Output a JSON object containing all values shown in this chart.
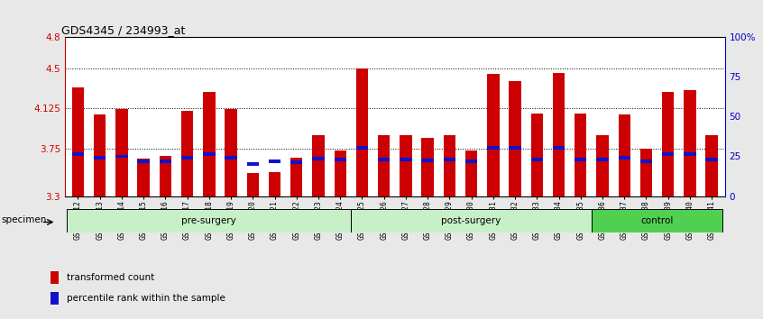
{
  "title": "GDS4345 / 234993_at",
  "samples": [
    "GSM842012",
    "GSM842013",
    "GSM842014",
    "GSM842015",
    "GSM842016",
    "GSM842017",
    "GSM842018",
    "GSM842019",
    "GSM842020",
    "GSM842021",
    "GSM842022",
    "GSM842023",
    "GSM842024",
    "GSM842025",
    "GSM842026",
    "GSM842027",
    "GSM842028",
    "GSM842029",
    "GSM842030",
    "GSM842031",
    "GSM842032",
    "GSM842033",
    "GSM842034",
    "GSM842035",
    "GSM842036",
    "GSM842037",
    "GSM842038",
    "GSM842039",
    "GSM842040",
    "GSM842041"
  ],
  "bar_values": [
    4.32,
    4.07,
    4.12,
    3.65,
    3.68,
    4.1,
    4.28,
    4.12,
    3.52,
    3.53,
    3.66,
    3.87,
    3.73,
    4.5,
    3.87,
    3.87,
    3.85,
    3.87,
    3.73,
    4.45,
    4.38,
    4.08,
    4.46,
    4.08,
    3.87,
    4.07,
    3.75,
    4.28,
    4.3,
    3.87
  ],
  "percentile_values": [
    3.695,
    3.665,
    3.675,
    3.625,
    3.63,
    3.665,
    3.695,
    3.665,
    3.6,
    3.625,
    3.62,
    3.655,
    3.645,
    3.755,
    3.645,
    3.645,
    3.64,
    3.645,
    3.63,
    3.755,
    3.755,
    3.645,
    3.755,
    3.645,
    3.645,
    3.665,
    3.63,
    3.695,
    3.695,
    3.645
  ],
  "groups": [
    {
      "label": "pre-surgery",
      "start": 0,
      "end": 13,
      "color": "#c8f0c8"
    },
    {
      "label": "post-surgery",
      "start": 13,
      "end": 24,
      "color": "#c8f0c8"
    },
    {
      "label": "control",
      "start": 24,
      "end": 30,
      "color": "#50d050"
    }
  ],
  "ymin": 3.3,
  "ymax": 4.8,
  "yticks_left": [
    3.3,
    3.75,
    4.125,
    4.5,
    4.8
  ],
  "ytick_labels_left": [
    "3.3",
    "3.75",
    "4.125",
    "4.5",
    "4.8"
  ],
  "right_yticks": [
    0,
    25,
    50,
    75,
    100
  ],
  "right_ytick_labels": [
    "0",
    "25",
    "50",
    "75",
    "100%"
  ],
  "bar_color": "#cc0000",
  "percentile_color": "#1111cc",
  "bar_width": 0.55,
  "bg_color": "#ffffff",
  "specimen_label": "specimen",
  "legend_items": [
    {
      "label": "transformed count",
      "color": "#cc0000"
    },
    {
      "label": "percentile rank within the sample",
      "color": "#1111cc"
    }
  ]
}
